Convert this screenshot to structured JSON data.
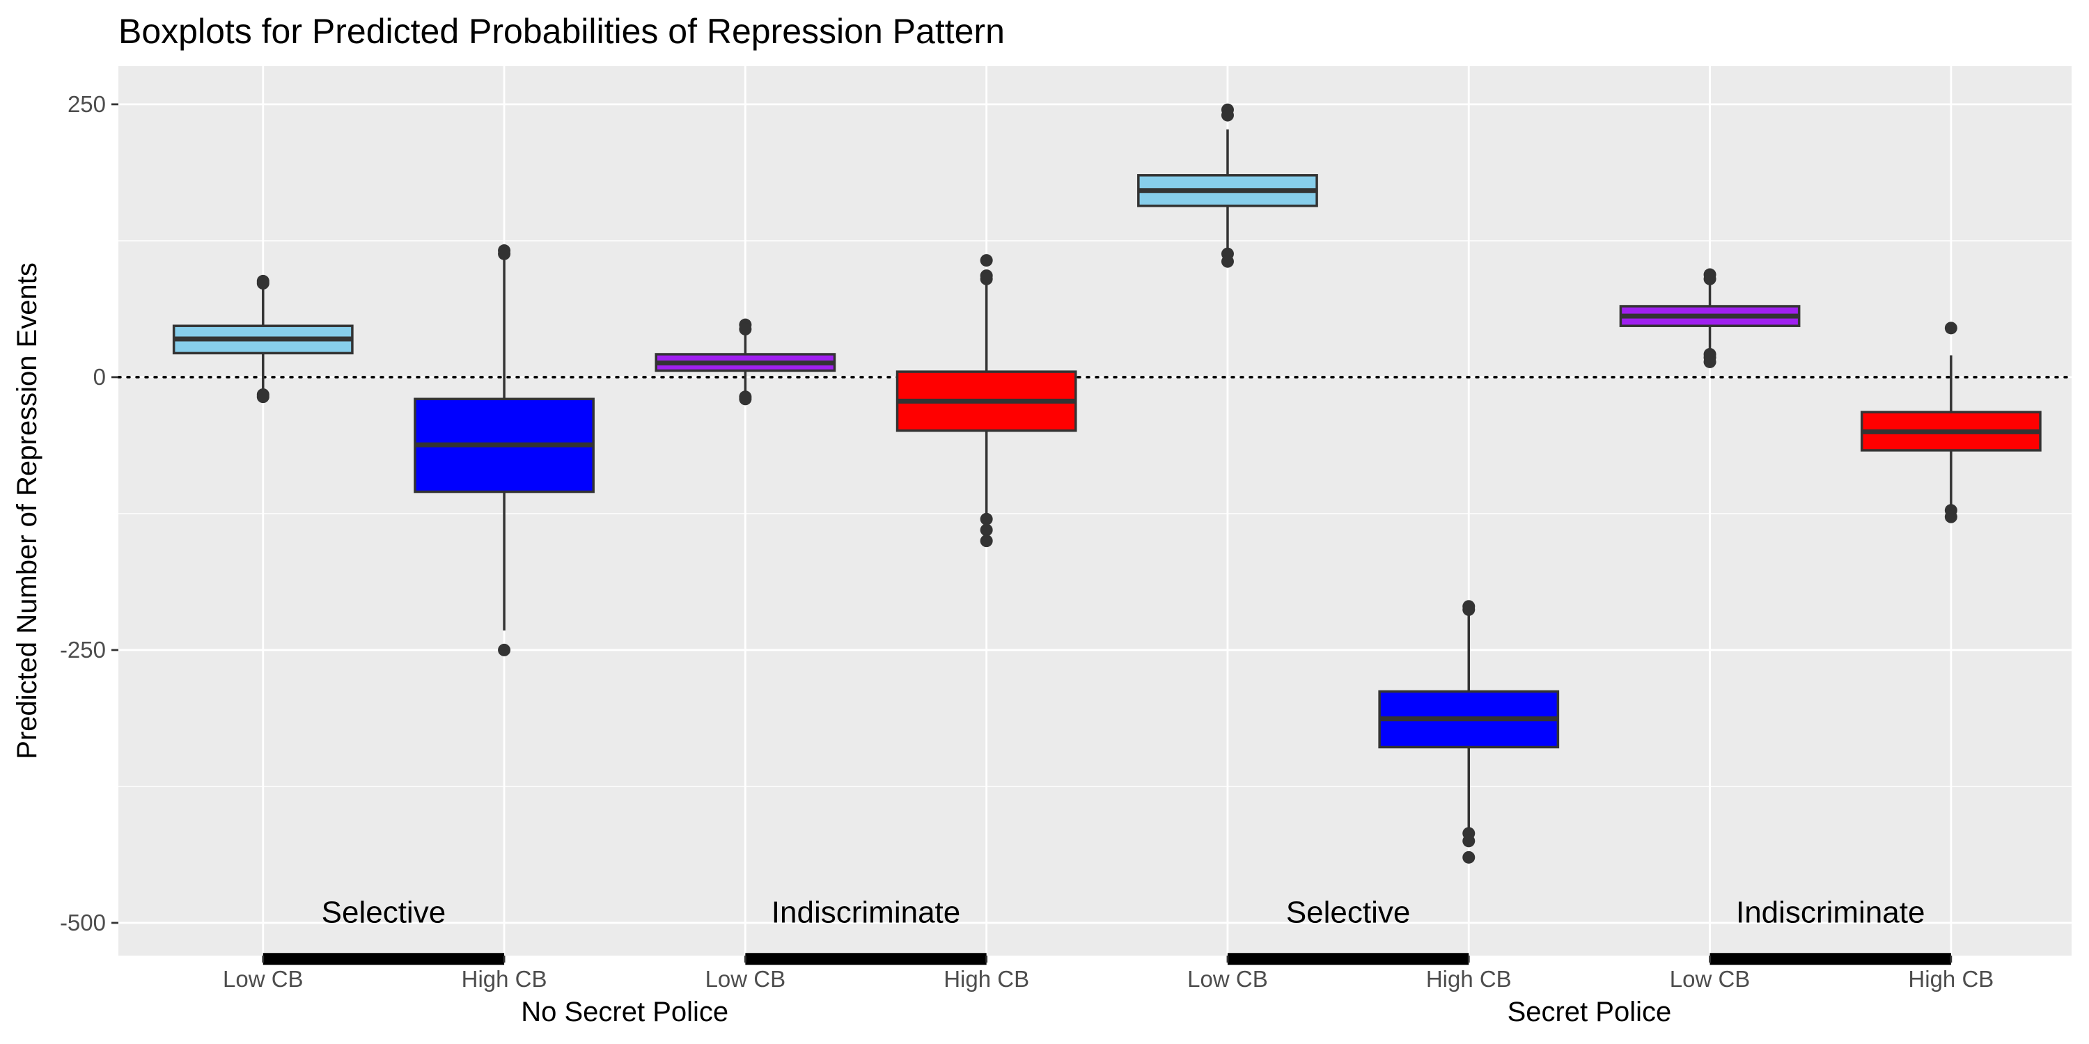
{
  "chart_data": {
    "type": "boxplot",
    "title": "Boxplots for Predicted Probabilities of Repression Pattern",
    "xlabel": "",
    "ylabel": "Predicted Number of Repression Events",
    "ylim": [
      -530,
      285
    ],
    "yticks": [
      250,
      0,
      -250,
      -500
    ],
    "reference_line": 0,
    "grid": true,
    "x_positions": [
      1,
      2,
      3,
      4,
      5,
      6,
      7,
      8
    ],
    "x_range": [
      0.4,
      8.5
    ],
    "x_tick_labels": [
      "Low CB",
      "High CB",
      "Low CB",
      "High CB",
      "Low CB",
      "High CB",
      "Low CB",
      "High CB"
    ],
    "groups": [
      {
        "label": "No Secret Police",
        "x": 2.5
      },
      {
        "label": "Secret Police",
        "x": 6.5
      }
    ],
    "annotations": [
      {
        "text": "Selective",
        "x": 1.5,
        "y": -490
      },
      {
        "text": "Indiscriminate",
        "x": 3.5,
        "y": -490
      },
      {
        "text": "Selective",
        "x": 5.5,
        "y": -490
      },
      {
        "text": "Indiscriminate",
        "x": 7.5,
        "y": -490
      }
    ],
    "bracket_segments": [
      [
        1,
        2
      ],
      [
        3,
        4
      ],
      [
        5,
        6
      ],
      [
        7,
        8
      ]
    ],
    "bracket_y": -533,
    "boxes": [
      {
        "x": 1,
        "category": "Low CB",
        "pattern": "Selective",
        "police": "No Secret Police",
        "color": "#87ceeb",
        "q1": 22,
        "median": 35,
        "q3": 47,
        "whisker_low": -12,
        "whisker_high": 83,
        "outliers": [
          88,
          86,
          -16,
          -18
        ]
      },
      {
        "x": 2,
        "category": "High CB",
        "pattern": "Selective",
        "police": "No Secret Police",
        "color": "#0000ff",
        "q1": -105,
        "median": -62,
        "q3": -20,
        "whisker_low": -232,
        "whisker_high": 108,
        "outliers": [
          116,
          113,
          -250
        ]
      },
      {
        "x": 3,
        "category": "Low CB",
        "pattern": "Indiscriminate",
        "police": "No Secret Police",
        "color": "#a020f0",
        "q1": 6,
        "median": 13,
        "q3": 21,
        "whisker_low": -14,
        "whisker_high": 40,
        "outliers": [
          48,
          44,
          -18,
          -20
        ]
      },
      {
        "x": 4,
        "category": "High CB",
        "pattern": "Indiscriminate",
        "police": "No Secret Police",
        "color": "#ff0000",
        "q1": -49,
        "median": -22,
        "q3": 5,
        "whisker_low": -127,
        "whisker_high": 86,
        "outliers": [
          107,
          93,
          90,
          -130,
          -140,
          -150
        ]
      },
      {
        "x": 5,
        "category": "Low CB",
        "pattern": "Selective",
        "police": "Secret Police",
        "color": "#87ceeb",
        "q1": 157,
        "median": 171,
        "q3": 185,
        "whisker_low": 115,
        "whisker_high": 227,
        "outliers": [
          245,
          240,
          113,
          106
        ]
      },
      {
        "x": 6,
        "category": "High CB",
        "pattern": "Selective",
        "police": "Secret Police",
        "color": "#0000ff",
        "q1": -339,
        "median": -313,
        "q3": -288,
        "whisker_low": -415,
        "whisker_high": -215,
        "outliers": [
          -210,
          -213,
          -418,
          -425,
          -440
        ]
      },
      {
        "x": 7,
        "category": "Low CB",
        "pattern": "Indiscriminate",
        "police": "Secret Police",
        "color": "#a020f0",
        "q1": 47,
        "median": 56,
        "q3": 65,
        "whisker_low": 25,
        "whisker_high": 87,
        "outliers": [
          94,
          90,
          21,
          18,
          14
        ]
      },
      {
        "x": 8,
        "category": "High CB",
        "pattern": "Indiscriminate",
        "police": "Secret Police",
        "color": "#ff0000",
        "q1": -67,
        "median": -50,
        "q3": -32,
        "whisker_low": -118,
        "whisker_high": 20,
        "outliers": [
          45,
          -122,
          -128
        ]
      }
    ]
  }
}
